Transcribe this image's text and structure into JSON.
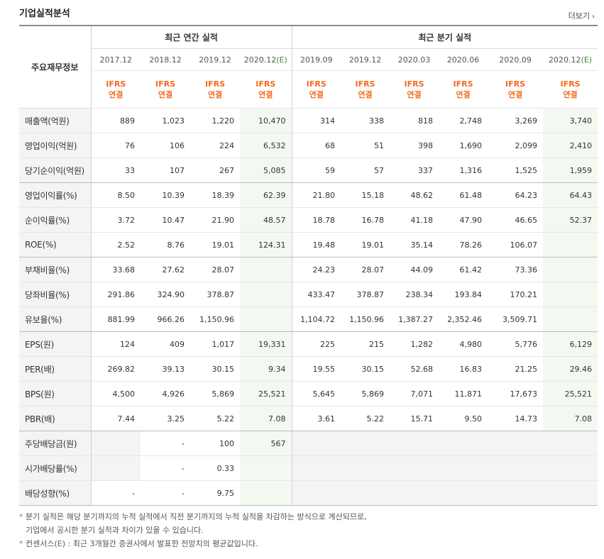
{
  "section": {
    "title": "기업실적분석",
    "more_label": "더보기",
    "more_icon": "chevron-right-icon"
  },
  "header": {
    "corner_label": "주요재무정보",
    "annual_group": "최근 연간 실적",
    "quarter_group": "최근 분기 실적",
    "annual_periods": [
      "2017.12",
      "2018.12",
      "2019.12",
      "2020.12"
    ],
    "quarter_periods": [
      "2019.09",
      "2019.12",
      "2020.03",
      "2020.06",
      "2020.09",
      "2020.12"
    ],
    "estimate_mark": "(E)",
    "standard_line1": "IFRS",
    "standard_line2": "연결"
  },
  "rows": [
    {
      "label": "매출액(억원)",
      "annual": [
        "889",
        "1,023",
        "1,220",
        "10,470"
      ],
      "quarter": [
        "314",
        "338",
        "818",
        "2,748",
        "3,269",
        "3,740"
      ]
    },
    {
      "label": "영업이익(억원)",
      "annual": [
        "76",
        "106",
        "224",
        "6,532"
      ],
      "quarter": [
        "68",
        "51",
        "398",
        "1,690",
        "2,099",
        "2,410"
      ]
    },
    {
      "label": "당기순이익(억원)",
      "annual": [
        "33",
        "107",
        "267",
        "5,085"
      ],
      "quarter": [
        "59",
        "57",
        "337",
        "1,316",
        "1,525",
        "1,959"
      ]
    },
    {
      "label": "영업이익률(%)",
      "annual": [
        "8.50",
        "10.39",
        "18.39",
        "62.39"
      ],
      "quarter": [
        "21.80",
        "15.18",
        "48.62",
        "61.48",
        "64.23",
        "64.43"
      ]
    },
    {
      "label": "순이익률(%)",
      "annual": [
        "3.72",
        "10.47",
        "21.90",
        "48.57"
      ],
      "quarter": [
        "18.78",
        "16.78",
        "41.18",
        "47.90",
        "46.65",
        "52.37"
      ]
    },
    {
      "label": "ROE(%)",
      "annual": [
        "2.52",
        "8.76",
        "19.01",
        "124.31"
      ],
      "quarter": [
        "19.48",
        "19.01",
        "35.14",
        "78.26",
        "106.07",
        ""
      ]
    },
    {
      "label": "부채비율(%)",
      "annual": [
        "33.68",
        "27.62",
        "28.07",
        ""
      ],
      "quarter": [
        "24.23",
        "28.07",
        "44.09",
        "61.42",
        "73.36",
        ""
      ]
    },
    {
      "label": "당좌비율(%)",
      "annual": [
        "291.86",
        "324.90",
        "378.87",
        ""
      ],
      "quarter": [
        "433.47",
        "378.87",
        "238.34",
        "193.84",
        "170.21",
        ""
      ]
    },
    {
      "label": "유보율(%)",
      "annual": [
        "881.99",
        "966.26",
        "1,150.96",
        ""
      ],
      "quarter": [
        "1,104.72",
        "1,150.96",
        "1,387.27",
        "2,352.46",
        "3,509.71",
        ""
      ]
    },
    {
      "label": "EPS(원)",
      "annual": [
        "124",
        "409",
        "1,017",
        "19,331"
      ],
      "quarter": [
        "225",
        "215",
        "1,282",
        "4,980",
        "5,776",
        "6,129"
      ]
    },
    {
      "label": "PER(배)",
      "annual": [
        "269.82",
        "39.13",
        "30.15",
        "9.34"
      ],
      "quarter": [
        "19.55",
        "30.15",
        "52.68",
        "16.83",
        "21.25",
        "29.46"
      ]
    },
    {
      "label": "BPS(원)",
      "annual": [
        "4,500",
        "4,926",
        "5,869",
        "25,521"
      ],
      "quarter": [
        "5,645",
        "5,869",
        "7,071",
        "11,871",
        "17,673",
        "25,521"
      ]
    },
    {
      "label": "PBR(배)",
      "annual": [
        "7.44",
        "3.25",
        "5.22",
        "7.08"
      ],
      "quarter": [
        "3.61",
        "5.22",
        "15.71",
        "9.50",
        "14.73",
        "7.08"
      ]
    },
    {
      "label": "주당배당금(원)",
      "annual": [
        "",
        "-",
        "100",
        "567"
      ],
      "quarter": [
        "",
        "",
        "",
        "",
        "",
        ""
      ]
    },
    {
      "label": "시가배당률(%)",
      "annual": [
        "",
        "-",
        "0.33",
        ""
      ],
      "quarter": [
        "",
        "",
        "",
        "",
        "",
        ""
      ]
    },
    {
      "label": "배당성향(%)",
      "annual": [
        "-",
        "-",
        "9.75",
        ""
      ],
      "quarter": [
        "",
        "",
        "",
        "",
        "",
        ""
      ]
    }
  ],
  "notes": {
    "bullet": "*",
    "line1": "분기 실적은 해당 분기까지의 누적 실적에서 직전 분기까지의 누적 실적을 차감하는 방식으로 계산되므로,",
    "line2": "기업에서 공시한 분기 실적과 차이가 있을 수 있습니다.",
    "line3_prefix": "컨센서스(",
    "line3_e": "E",
    "line3_suffix": ") : 최근 3개월간 증권사에서 발표한 전망치의 평균값입니다."
  },
  "colors": {
    "ifrs": "#f46b1c",
    "estimate_bg": "#f3f9f0",
    "estimate_mark": "#3a8d2a",
    "rowhead_bg": "#f4f4f4"
  }
}
